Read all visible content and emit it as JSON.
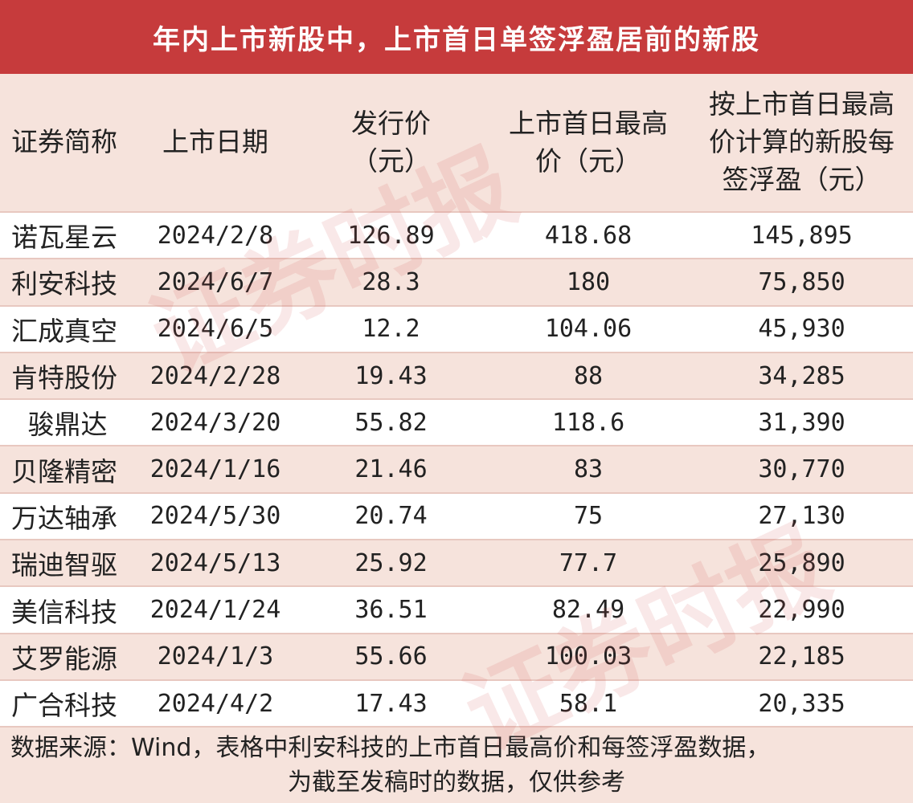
{
  "title": "年内上市新股中，上市首日单签浮盈居前的新股",
  "columns": [
    {
      "line1": "证券简称",
      "line2": "",
      "line3": ""
    },
    {
      "line1": "上市日期",
      "line2": "",
      "line3": ""
    },
    {
      "line1": "发行价",
      "line2": "（元）",
      "line3": ""
    },
    {
      "line1": "上市首日最高",
      "line2": "价（元）",
      "line3": ""
    },
    {
      "line1": "按上市首日最高",
      "line2": "价计算的新股每",
      "line3": "签浮盈（元）"
    }
  ],
  "rows": [
    {
      "name": "诺瓦星云",
      "date": "2024/2/8",
      "price": "126.89",
      "high": "418.68",
      "profit": "145,895"
    },
    {
      "name": "利安科技",
      "date": "2024/6/7",
      "price": "28.3",
      "high": "180",
      "profit": "75,850"
    },
    {
      "name": "汇成真空",
      "date": "2024/6/5",
      "price": "12.2",
      "high": "104.06",
      "profit": "45,930"
    },
    {
      "name": "肯特股份",
      "date": "2024/2/28",
      "price": "19.43",
      "high": "88",
      "profit": "34,285"
    },
    {
      "name": "骏鼎达",
      "date": "2024/3/20",
      "price": "55.82",
      "high": "118.6",
      "profit": "31,390"
    },
    {
      "name": "贝隆精密",
      "date": "2024/1/16",
      "price": "21.46",
      "high": "83",
      "profit": "30,770"
    },
    {
      "name": "万达轴承",
      "date": "2024/5/30",
      "price": "20.74",
      "high": "75",
      "profit": "27,130"
    },
    {
      "name": "瑞迪智驱",
      "date": "2024/5/13",
      "price": "25.92",
      "high": "77.7",
      "profit": "25,890"
    },
    {
      "name": "美信科技",
      "date": "2024/1/24",
      "price": "36.51",
      "high": "82.49",
      "profit": "22,990"
    },
    {
      "name": "艾罗能源",
      "date": "2024/1/3",
      "price": "55.66",
      "high": "100.03",
      "profit": "22,185"
    },
    {
      "name": "广合科技",
      "date": "2024/4/2",
      "price": "17.43",
      "high": "58.1",
      "profit": "20,335"
    }
  ],
  "footer": {
    "line1": "数据来源：Wind，表格中利安科技的上市首日最高价和每签浮盈数据，",
    "line2": "为截至发稿时的数据，仅供参考"
  },
  "watermark": "证券时报"
}
